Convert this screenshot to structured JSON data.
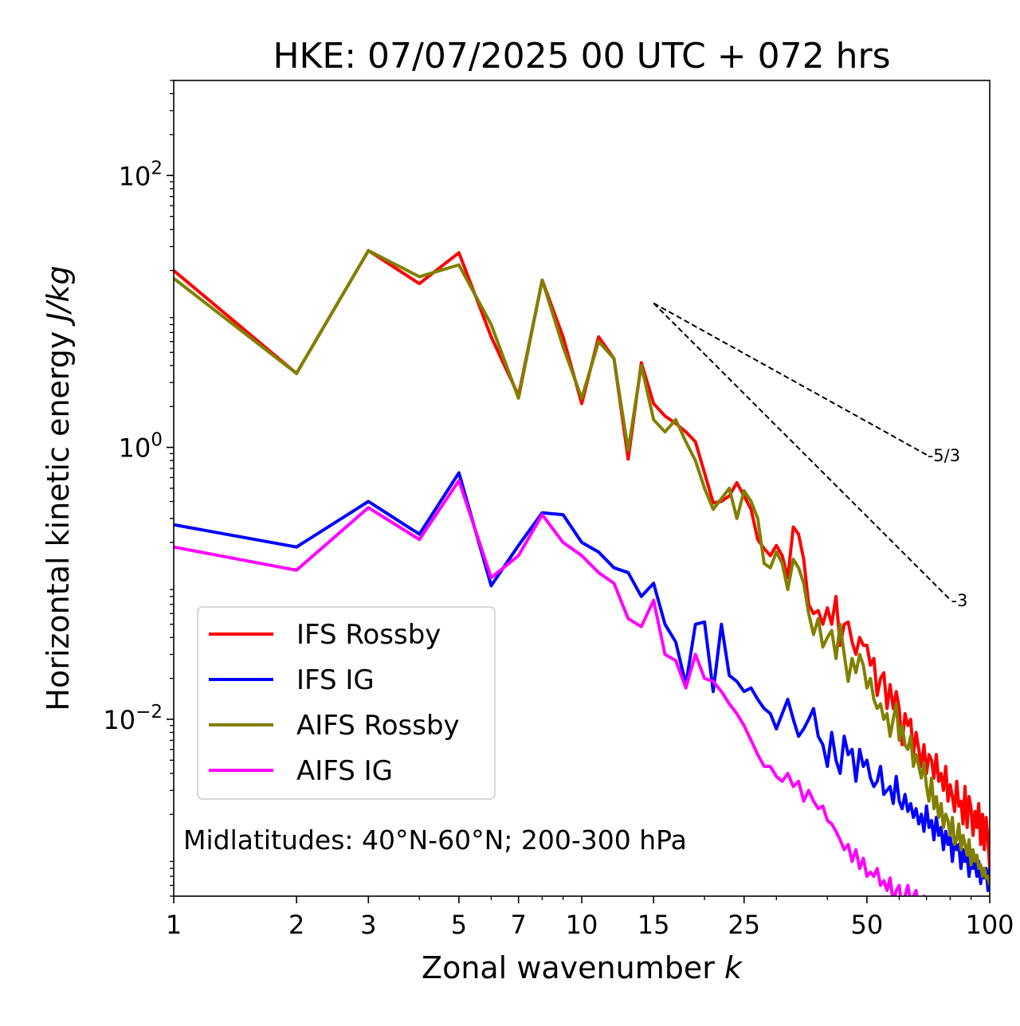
{
  "chart_data": {
    "type": "line",
    "title": "HKE: 07/07/2025 00 UTC + 072 hrs",
    "xlabel": "Zonal wavenumber ",
    "xlabel_italic": "k",
    "ylabel": "Horizontal kinetic energy ",
    "ylabel_italic": "J/kg",
    "x_scale": "log",
    "y_scale": "log",
    "xlim": [
      1,
      100
    ],
    "ylim": [
      0.0005,
      500
    ],
    "x_ticks": [
      1,
      2,
      3,
      5,
      7,
      10,
      15,
      25,
      50,
      100
    ],
    "x_tick_labels": [
      "1",
      "2",
      "3",
      "5",
      "7",
      "10",
      "15",
      "25",
      "50",
      "100"
    ],
    "y_ticks": [
      {
        "value": 100,
        "base": "10",
        "exp": "2"
      },
      {
        "value": 1,
        "base": "10",
        "exp": "0"
      },
      {
        "value": 0.01,
        "base": "10",
        "exp": "−2"
      }
    ],
    "grid": false,
    "legend_position": "center-left",
    "annotation": "Midlatitudes: 40°N-60°N; 200-300 hPa",
    "reference_slopes": [
      {
        "label": "-5/3",
        "slope": -1.6667,
        "x": [
          15,
          70
        ],
        "y0": 11.5
      },
      {
        "label": "-3",
        "slope": -3,
        "x": [
          15,
          80
        ],
        "y0": 11.5
      }
    ],
    "series": [
      {
        "name": "IFS Rossby",
        "color": "#ff0000",
        "x": [
          1,
          2,
          3,
          4,
          5,
          6,
          7,
          8,
          9,
          10,
          11,
          12,
          13,
          14,
          15,
          16,
          17,
          18,
          19,
          20,
          21,
          22,
          23,
          24,
          25,
          26,
          27,
          28,
          29,
          30,
          31,
          32,
          33,
          34,
          35,
          36,
          37,
          38,
          39,
          40,
          41,
          42,
          43,
          44,
          45,
          46,
          47,
          48,
          49,
          50,
          51,
          52,
          53,
          54,
          55,
          56,
          57,
          58,
          59,
          60,
          61,
          62,
          63,
          64,
          65,
          66,
          67,
          68,
          69,
          70,
          71,
          72,
          73,
          74,
          75,
          76,
          77,
          78,
          79,
          80,
          81,
          82,
          83,
          84,
          85,
          86,
          87,
          88,
          89,
          90,
          91,
          92,
          93,
          94,
          95,
          96,
          97,
          98,
          99,
          100
        ],
        "y": [
          20,
          3.5,
          28,
          16,
          27,
          6.5,
          2.4,
          17,
          6.5,
          2.1,
          6.5,
          4.5,
          0.82,
          4.2,
          2.1,
          1.7,
          1.5,
          1.3,
          1.1,
          0.65,
          0.39,
          0.4,
          0.44,
          0.55,
          0.44,
          0.35,
          0.21,
          0.18,
          0.16,
          0.19,
          0.16,
          0.11,
          0.26,
          0.23,
          0.15,
          0.07,
          0.06,
          0.063,
          0.05,
          0.066,
          0.05,
          0.08,
          0.035,
          0.05,
          0.052,
          0.037,
          0.03,
          0.04,
          0.035,
          0.035,
          0.025,
          0.028,
          0.015,
          0.02,
          0.022,
          0.012,
          0.018,
          0.012,
          0.016,
          0.012,
          0.0065,
          0.011,
          0.009,
          0.01,
          0.0055,
          0.008,
          0.006,
          0.0045,
          0.0065,
          0.004,
          0.0055,
          0.005,
          0.0037,
          0.0055,
          0.0035,
          0.004,
          0.003,
          0.0045,
          0.0025,
          0.0033,
          0.0027,
          0.0021,
          0.0035,
          0.0023,
          0.0025,
          0.0017,
          0.0032,
          0.0016,
          0.0027,
          0.0022,
          0.0014,
          0.0021,
          0.0016,
          0.0024,
          0.0012,
          0.002,
          0.0011,
          0.0019,
          0.0013,
          0.0008
        ]
      },
      {
        "name": "IFS IG",
        "color": "#0000ff",
        "x": [
          1,
          2,
          3,
          4,
          5,
          6,
          7,
          8,
          9,
          10,
          11,
          12,
          13,
          14,
          15,
          16,
          17,
          18,
          19,
          20,
          21,
          22,
          23,
          24,
          25,
          26,
          27,
          28,
          29,
          30,
          31,
          32,
          33,
          34,
          35,
          36,
          37,
          38,
          39,
          40,
          41,
          42,
          43,
          44,
          45,
          46,
          47,
          48,
          49,
          50,
          51,
          52,
          53,
          54,
          55,
          56,
          57,
          58,
          59,
          60,
          61,
          62,
          63,
          64,
          65,
          66,
          67,
          68,
          69,
          70,
          71,
          72,
          73,
          74,
          75,
          76,
          77,
          78,
          79,
          80,
          81,
          82,
          83,
          84,
          85,
          86,
          87,
          88,
          89,
          90,
          91,
          92,
          93,
          94,
          95,
          96,
          97,
          98,
          99,
          100
        ],
        "y": [
          0.27,
          0.185,
          0.4,
          0.23,
          0.65,
          0.096,
          0.19,
          0.33,
          0.32,
          0.2,
          0.17,
          0.13,
          0.12,
          0.08,
          0.1,
          0.05,
          0.037,
          0.018,
          0.05,
          0.052,
          0.016,
          0.05,
          0.021,
          0.019,
          0.016,
          0.017,
          0.014,
          0.012,
          0.011,
          0.0085,
          0.011,
          0.014,
          0.01,
          0.0075,
          0.0085,
          0.01,
          0.012,
          0.0075,
          0.0065,
          0.0045,
          0.008,
          0.005,
          0.004,
          0.0075,
          0.0055,
          0.006,
          0.0035,
          0.006,
          0.0045,
          0.005,
          0.0037,
          0.0032,
          0.0035,
          0.0045,
          0.0028,
          0.003,
          0.0032,
          0.0024,
          0.0038,
          0.0025,
          0.0022,
          0.0028,
          0.0021,
          0.0024,
          0.0019,
          0.0022,
          0.0017,
          0.002,
          0.0015,
          0.0023,
          0.0016,
          0.0018,
          0.0013,
          0.0019,
          0.0014,
          0.0016,
          0.0011,
          0.0015,
          0.0012,
          0.0014,
          0.0009,
          0.0013,
          0.0011,
          0.0012,
          0.0008,
          0.0011,
          0.0009,
          0.001,
          0.0007,
          0.00095,
          0.0008,
          0.00088,
          0.0007,
          0.0009,
          0.00062,
          0.0008,
          0.00068,
          0.0008,
          0.00055,
          0.0008
        ]
      },
      {
        "name": "AIFS Rossby",
        "color": "#808000",
        "x": [
          1,
          2,
          3,
          4,
          5,
          6,
          7,
          8,
          9,
          10,
          11,
          12,
          13,
          14,
          15,
          16,
          17,
          18,
          19,
          20,
          21,
          22,
          23,
          24,
          25,
          26,
          27,
          28,
          29,
          30,
          31,
          32,
          33,
          34,
          35,
          36,
          37,
          38,
          39,
          40,
          41,
          42,
          43,
          44,
          45,
          46,
          47,
          48,
          49,
          50,
          51,
          52,
          53,
          54,
          55,
          56,
          57,
          58,
          59,
          60,
          61,
          62,
          63,
          64,
          65,
          66,
          67,
          68,
          69,
          70,
          71,
          72,
          73,
          74,
          75,
          76,
          77,
          78,
          79,
          80,
          81,
          82,
          83,
          84,
          85,
          86,
          87,
          88,
          89,
          90,
          91,
          92,
          93,
          94,
          95,
          96,
          97,
          98,
          99,
          100
        ],
        "y": [
          17.5,
          3.5,
          28,
          18,
          22,
          8,
          2.3,
          17,
          5.5,
          2.3,
          6,
          4.5,
          0.95,
          4,
          1.6,
          1.3,
          1.6,
          1.1,
          0.8,
          0.5,
          0.35,
          0.42,
          0.5,
          0.3,
          0.48,
          0.4,
          0.3,
          0.14,
          0.13,
          0.17,
          0.14,
          0.09,
          0.15,
          0.13,
          0.1,
          0.06,
          0.042,
          0.055,
          0.034,
          0.04,
          0.045,
          0.028,
          0.05,
          0.03,
          0.019,
          0.028,
          0.022,
          0.03,
          0.025,
          0.017,
          0.02,
          0.014,
          0.012,
          0.013,
          0.01,
          0.011,
          0.0075,
          0.01,
          0.013,
          0.007,
          0.009,
          0.0065,
          0.006,
          0.0075,
          0.0045,
          0.0055,
          0.0045,
          0.0037,
          0.0048,
          0.0032,
          0.0025,
          0.0037,
          0.0022,
          0.0027,
          0.0019,
          0.0024,
          0.0016,
          0.002,
          0.0018,
          0.0014,
          0.0019,
          0.0012,
          0.0013,
          0.0017,
          0.0011,
          0.0014,
          0.0012,
          0.001,
          0.0013,
          0.00085,
          0.0011,
          0.0009,
          0.001,
          0.0008,
          0.00085,
          0.0007,
          0.0008,
          0.00068,
          0.0007,
          0.0006
        ]
      },
      {
        "name": "AIFS IG",
        "color": "#ff00ff",
        "x": [
          1,
          2,
          3,
          4,
          5,
          6,
          7,
          8,
          9,
          10,
          11,
          12,
          13,
          14,
          15,
          16,
          17,
          18,
          19,
          20,
          21,
          22,
          23,
          24,
          25,
          26,
          27,
          28,
          29,
          30,
          31,
          32,
          33,
          34,
          35,
          36,
          37,
          38,
          39,
          40,
          41,
          42,
          43,
          44,
          45,
          46,
          47,
          48,
          49,
          50,
          51,
          52,
          53,
          54,
          55,
          56,
          57,
          58,
          59,
          60,
          61,
          62,
          63,
          64,
          65,
          66,
          67,
          68,
          69,
          70,
          71,
          72,
          73,
          74,
          75,
          76,
          77,
          78,
          79,
          80
        ],
        "y": [
          0.185,
          0.125,
          0.36,
          0.21,
          0.57,
          0.11,
          0.16,
          0.32,
          0.2,
          0.16,
          0.12,
          0.1,
          0.055,
          0.048,
          0.075,
          0.03,
          0.027,
          0.017,
          0.03,
          0.02,
          0.019,
          0.016,
          0.013,
          0.011,
          0.009,
          0.007,
          0.0055,
          0.0045,
          0.0045,
          0.0038,
          0.0035,
          0.004,
          0.0032,
          0.0035,
          0.0025,
          0.003,
          0.0025,
          0.0022,
          0.0023,
          0.0018,
          0.0017,
          0.0015,
          0.0013,
          0.0011,
          0.0012,
          0.0009,
          0.0011,
          0.0008,
          0.00095,
          0.0007,
          0.00075,
          0.0007,
          0.0008,
          0.0006,
          0.00065,
          0.00055,
          0.00068,
          0.00045,
          0.00055,
          0.0006,
          0.0004,
          0.0005,
          0.0006,
          0.00045,
          0.0005,
          0.00055,
          0.0004,
          0.00045,
          0.0005,
          0.0004,
          0.00045,
          0.0004,
          0.00048,
          0.00038,
          0.00042,
          0.00036,
          0.0004,
          0.00035,
          0.0004,
          0.00032
        ]
      }
    ]
  }
}
